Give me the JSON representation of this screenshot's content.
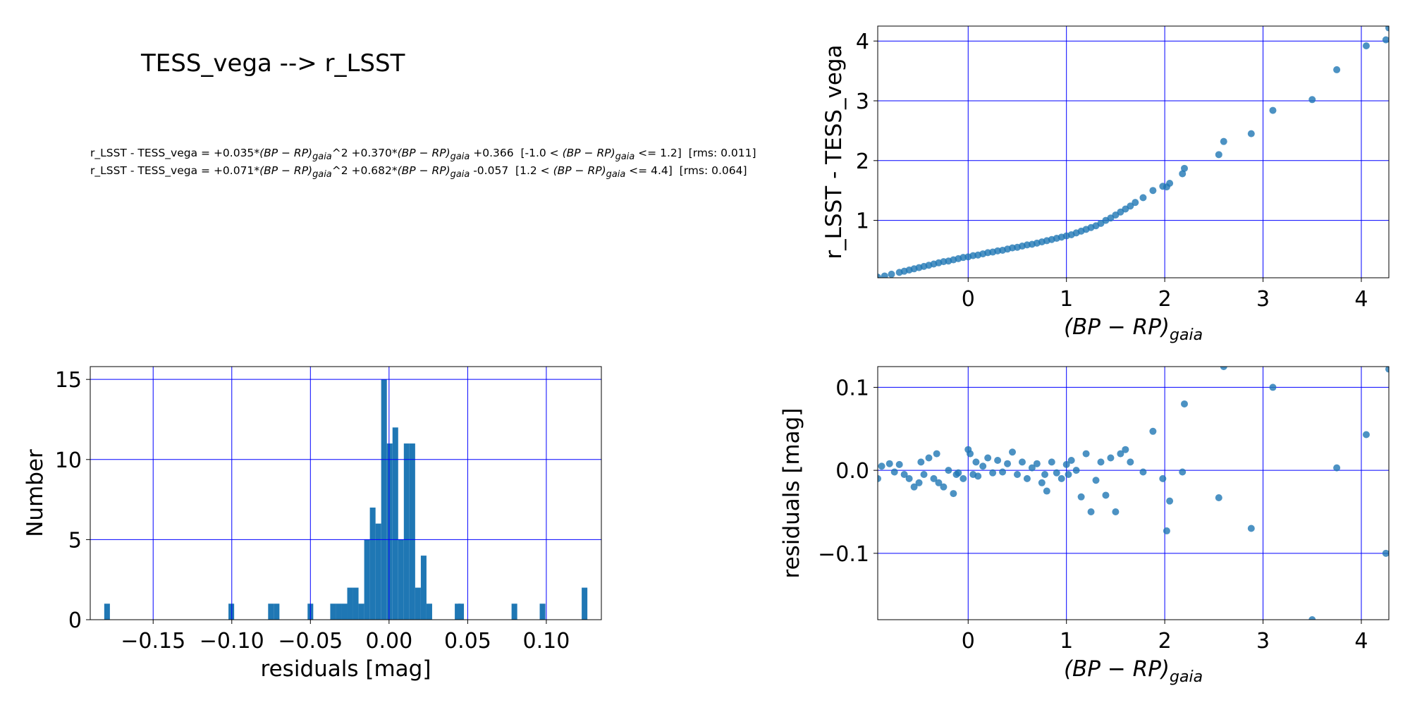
{
  "figure": {
    "title": "TESS_vega --> r_LSST",
    "equations": [
      {
        "lhs": "r_LSST - TESS_vega",
        "a2": "+0.035",
        "a1": "+0.370",
        "a0": "+0.366",
        "range_low": "-1.0",
        "range_high": "1.2",
        "rms": "0.011"
      },
      {
        "lhs": "r_LSST - TESS_vega",
        "a2": "+0.071",
        "a1": "+0.682",
        "a0": "-0.057",
        "range_low": "1.2",
        "range_high": "4.4",
        "rms": "0.064"
      }
    ],
    "gaia_label": {
      "main": "(BP − RP)",
      "sub": "gaia"
    }
  },
  "chart_data": [
    {
      "id": "fit",
      "type": "scatter",
      "xlabel": "(BP − RP)gaia",
      "ylabel": "r_LSST - TESS_vega",
      "xlim": [
        -0.92,
        4.28
      ],
      "ylim": [
        0.04,
        4.25
      ],
      "xticks": [
        0,
        1,
        2,
        3,
        4
      ],
      "yticks": [
        1,
        2,
        3,
        4
      ],
      "grid": true,
      "color": "#1f77b4",
      "x": [
        -0.92,
        -0.85,
        -0.78,
        -0.7,
        -0.65,
        -0.6,
        -0.55,
        -0.5,
        -0.45,
        -0.4,
        -0.35,
        -0.3,
        -0.25,
        -0.2,
        -0.15,
        -0.1,
        -0.05,
        0.0,
        0.05,
        0.1,
        0.15,
        0.2,
        0.25,
        0.3,
        0.35,
        0.4,
        0.45,
        0.5,
        0.55,
        0.6,
        0.65,
        0.7,
        0.75,
        0.8,
        0.85,
        0.9,
        0.95,
        1.0,
        1.05,
        1.1,
        1.15,
        1.2,
        1.25,
        1.3,
        1.35,
        1.4,
        1.45,
        1.5,
        1.55,
        1.6,
        1.65,
        1.7,
        1.78,
        1.88,
        1.98,
        2.02,
        2.05,
        2.18,
        2.2,
        2.55,
        2.6,
        2.88,
        3.1,
        3.5,
        3.75,
        4.05,
        4.25,
        4.28
      ],
      "y": [
        0.05,
        0.07,
        0.1,
        0.13,
        0.15,
        0.17,
        0.19,
        0.21,
        0.23,
        0.25,
        0.27,
        0.29,
        0.31,
        0.32,
        0.34,
        0.36,
        0.38,
        0.39,
        0.41,
        0.42,
        0.44,
        0.46,
        0.47,
        0.49,
        0.5,
        0.52,
        0.54,
        0.55,
        0.57,
        0.59,
        0.6,
        0.62,
        0.64,
        0.66,
        0.68,
        0.7,
        0.72,
        0.74,
        0.76,
        0.79,
        0.82,
        0.85,
        0.88,
        0.91,
        0.95,
        1.0,
        1.04,
        1.09,
        1.14,
        1.19,
        1.24,
        1.3,
        1.38,
        1.5,
        1.57,
        1.56,
        1.62,
        1.78,
        1.87,
        2.1,
        2.32,
        2.45,
        2.84,
        3.02,
        3.52,
        3.92,
        4.02,
        4.22
      ]
    },
    {
      "id": "hist",
      "type": "bar",
      "xlabel": "residuals [mag]",
      "ylabel": "Number",
      "xlim": [
        -0.19,
        0.135
      ],
      "ylim": [
        0,
        15.8
      ],
      "xticks": [
        -0.15,
        -0.1,
        -0.05,
        0.0,
        0.05,
        0.1
      ],
      "xtick_labels": [
        "−0.15",
        "−0.10",
        "−0.05",
        "0.00",
        "0.05",
        "0.10"
      ],
      "yticks": [
        0,
        5,
        10,
        15
      ],
      "grid": true,
      "color": "#1f77b4",
      "bin_width": 0.0036,
      "bin_centers": [
        -0.1793,
        -0.1003,
        -0.0751,
        -0.0715,
        -0.05,
        -0.0356,
        -0.032,
        -0.0284,
        -0.0248,
        -0.0212,
        -0.0176,
        -0.014,
        -0.0104,
        -0.0068,
        -0.0032,
        0.0004,
        0.004,
        0.0076,
        0.0112,
        0.0148,
        0.0184,
        0.022,
        0.0256,
        0.0436,
        0.0458,
        0.0797,
        0.0976,
        0.1243
      ],
      "counts": [
        1,
        1,
        1,
        1,
        1,
        1,
        1,
        1,
        2,
        2,
        1,
        5,
        7,
        6,
        15,
        11,
        12,
        5,
        11,
        11,
        2,
        4,
        1,
        1,
        1,
        1,
        1,
        2
      ]
    },
    {
      "id": "resid",
      "type": "scatter",
      "xlabel": "(BP − RP)gaia",
      "ylabel": "residuals [mag]",
      "xlim": [
        -0.92,
        4.28
      ],
      "ylim": [
        -0.18,
        0.125
      ],
      "xticks": [
        0,
        1,
        2,
        3,
        4
      ],
      "yticks": [
        -0.1,
        0.0,
        0.1
      ],
      "ytick_labels": [
        "−0.1",
        "0.0",
        "0.1"
      ],
      "grid": true,
      "color": "#1f77b4",
      "x": [
        -0.92,
        -0.88,
        -0.8,
        -0.75,
        -0.7,
        -0.65,
        -0.6,
        -0.55,
        -0.5,
        -0.48,
        -0.45,
        -0.4,
        -0.35,
        -0.32,
        -0.3,
        -0.25,
        -0.2,
        -0.15,
        -0.12,
        -0.1,
        -0.05,
        0.0,
        0.02,
        0.05,
        0.08,
        0.1,
        0.15,
        0.2,
        0.25,
        0.3,
        0.35,
        0.4,
        0.45,
        0.5,
        0.55,
        0.6,
        0.65,
        0.7,
        0.75,
        0.78,
        0.8,
        0.85,
        0.9,
        0.95,
        1.0,
        1.02,
        1.05,
        1.1,
        1.15,
        1.2,
        1.25,
        1.3,
        1.35,
        1.4,
        1.45,
        1.5,
        1.55,
        1.6,
        1.65,
        1.78,
        1.88,
        1.98,
        2.02,
        2.05,
        2.18,
        2.2,
        2.55,
        2.6,
        2.88,
        3.1,
        3.5,
        3.75,
        4.05,
        4.25,
        4.28
      ],
      "y": [
        -0.01,
        0.005,
        0.008,
        -0.002,
        0.007,
        -0.005,
        -0.01,
        -0.02,
        -0.015,
        0.01,
        -0.005,
        0.015,
        -0.01,
        0.02,
        -0.015,
        -0.02,
        0.0,
        -0.028,
        -0.005,
        -0.003,
        -0.01,
        0.025,
        0.02,
        -0.005,
        0.01,
        -0.007,
        0.005,
        0.015,
        -0.003,
        0.012,
        -0.002,
        0.008,
        0.022,
        -0.005,
        0.01,
        -0.01,
        0.003,
        0.008,
        -0.015,
        -0.005,
        -0.025,
        0.01,
        -0.003,
        -0.01,
        0.007,
        -0.005,
        0.012,
        0.0,
        -0.032,
        0.02,
        -0.05,
        -0.012,
        0.01,
        -0.03,
        0.015,
        -0.05,
        0.02,
        0.025,
        0.01,
        -0.002,
        0.047,
        -0.01,
        -0.073,
        -0.037,
        -0.002,
        0.08,
        -0.033,
        0.125,
        -0.07,
        0.1,
        -0.18,
        0.003,
        0.043,
        -0.1,
        0.122
      ]
    }
  ]
}
